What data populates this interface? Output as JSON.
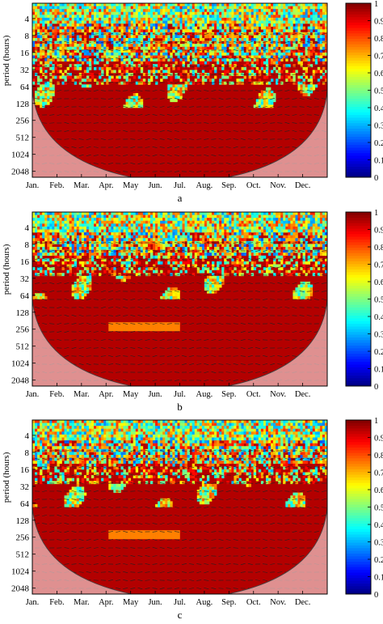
{
  "chart_data": [
    {
      "type": "heatmap",
      "panel_label": "a",
      "title": "",
      "xlabel": "",
      "ylabel": "period (hours)",
      "x_ticks": [
        "Jan.",
        "Feb.",
        "Mar.",
        "Apr.",
        "May",
        "Jun.",
        "Jul.",
        "Aug.",
        "Sep.",
        "Oct.",
        "Nov.",
        "Dec."
      ],
      "y_ticks": [
        "4",
        "8",
        "16",
        "32",
        "64",
        "128",
        "256",
        "512",
        "1024",
        "2048"
      ],
      "y_scale": "log2",
      "y_reversed": true,
      "colorbar": {
        "min": 0,
        "max": 1,
        "ticks": [
          "0",
          "0.1",
          "0.2",
          "0.3",
          "0.4",
          "0.5",
          "0.6",
          "0.7",
          "0.8",
          "0.9",
          "1"
        ]
      },
      "cone_of_influence": true,
      "high_coherence_from_period": 32
    },
    {
      "type": "heatmap",
      "panel_label": "b",
      "title": "",
      "xlabel": "",
      "ylabel": "period (hours)",
      "x_ticks": [
        "Jan.",
        "Feb.",
        "Mar.",
        "Apr.",
        "May",
        "Jun.",
        "Jul.",
        "Aug.",
        "Sep.",
        "Oct.",
        "Nov.",
        "Dec."
      ],
      "y_ticks": [
        "4",
        "8",
        "16",
        "32",
        "64",
        "128",
        "256",
        "512",
        "1024",
        "2048"
      ],
      "y_scale": "log2",
      "y_reversed": true,
      "colorbar": {
        "min": 0,
        "max": 1,
        "ticks": [
          "0",
          "0.1",
          "0.2",
          "0.3",
          "0.4",
          "0.5",
          "0.6",
          "0.7",
          "0.8",
          "0.9",
          "1"
        ]
      },
      "cone_of_influence": true,
      "high_coherence_from_period": 16
    },
    {
      "type": "heatmap",
      "panel_label": "c",
      "title": "",
      "xlabel": "",
      "ylabel": "period (hours)",
      "x_ticks": [
        "Jan.",
        "Feb.",
        "Mar.",
        "Apr.",
        "May",
        "Jun.",
        "Jul.",
        "Aug.",
        "Sep.",
        "Oct.",
        "Nov.",
        "Dec."
      ],
      "y_ticks": [
        "4",
        "8",
        "16",
        "32",
        "64",
        "128",
        "256",
        "512",
        "1024",
        "2048"
      ],
      "y_scale": "log2",
      "y_reversed": true,
      "colorbar": {
        "min": 0,
        "max": 1,
        "ticks": [
          "0",
          "0.1",
          "0.2",
          "0.3",
          "0.4",
          "0.5",
          "0.6",
          "0.7",
          "0.8",
          "0.9",
          "1"
        ]
      },
      "cone_of_influence": true,
      "high_coherence_from_period": 16
    }
  ]
}
